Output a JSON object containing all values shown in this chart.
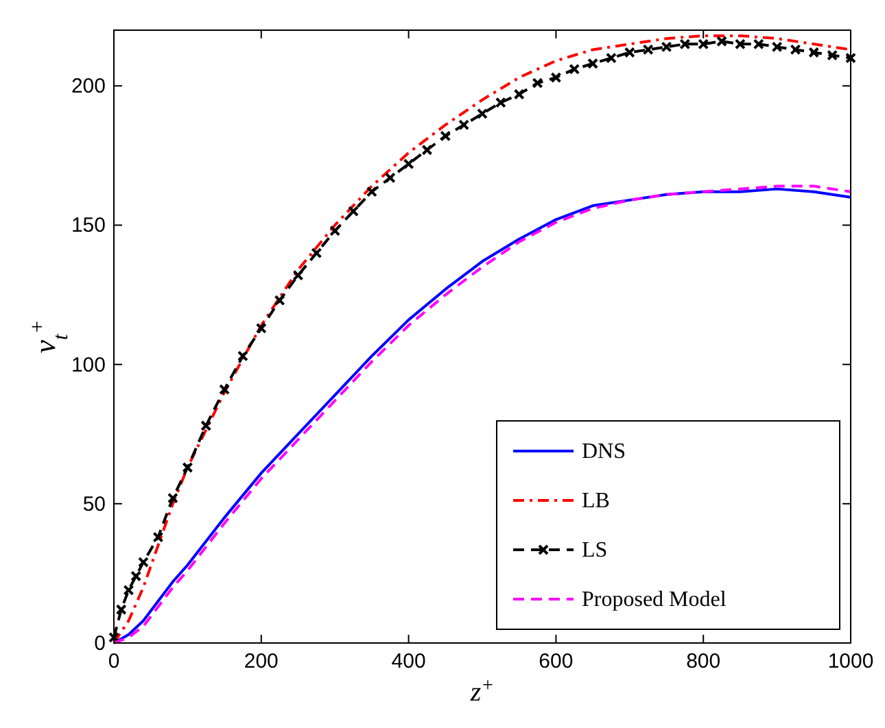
{
  "chart_data": {
    "type": "line",
    "xlabel": "z$^{+}$",
    "ylabel": "ν$_{t}$$^{+}$",
    "xlim": [
      0,
      1000
    ],
    "ylim": [
      0,
      220
    ],
    "xticks": [
      0,
      200,
      400,
      600,
      800,
      1000
    ],
    "yticks": [
      0,
      50,
      100,
      150,
      200
    ],
    "grid": false,
    "legend": "bottom right",
    "series": [
      {
        "name": "DNS",
        "color": "#0000ff",
        "line_style": "solid",
        "marker": "none",
        "x": [
          0,
          20,
          40,
          60,
          80,
          100,
          150,
          200,
          250,
          300,
          350,
          400,
          450,
          500,
          550,
          600,
          650,
          700,
          750,
          800,
          850,
          900,
          950,
          1000
        ],
        "values": [
          0,
          3,
          8,
          15,
          22,
          28,
          45,
          61,
          75,
          89,
          103,
          116,
          127,
          137,
          145,
          152,
          157,
          159,
          161,
          162,
          162,
          163,
          162,
          160
        ]
      },
      {
        "name": "LB",
        "color": "#ff0000",
        "line_style": "dashdot",
        "marker": "none",
        "x": [
          0,
          20,
          40,
          60,
          80,
          100,
          150,
          200,
          250,
          300,
          350,
          400,
          450,
          500,
          550,
          600,
          650,
          700,
          750,
          800,
          850,
          900,
          950,
          1000
        ],
        "values": [
          0,
          8,
          20,
          35,
          50,
          63,
          90,
          114,
          134,
          150,
          164,
          176,
          186,
          195,
          203,
          209,
          213,
          215,
          217,
          218,
          218,
          217,
          215,
          213
        ]
      },
      {
        "name": "LS",
        "color": "#000000",
        "line_style": "dashed",
        "marker": "cross",
        "x": [
          0,
          10,
          20,
          30,
          40,
          60,
          80,
          100,
          125,
          150,
          175,
          200,
          225,
          250,
          275,
          300,
          325,
          350,
          375,
          400,
          425,
          450,
          475,
          500,
          525,
          550,
          575,
          600,
          625,
          650,
          675,
          700,
          725,
          750,
          775,
          800,
          825,
          850,
          875,
          900,
          925,
          950,
          975,
          1000
        ],
        "values": [
          2,
          12,
          19,
          24,
          29,
          38,
          52,
          63,
          78,
          91,
          103,
          113,
          123,
          132,
          140,
          148,
          155,
          162,
          167,
          172,
          177,
          182,
          186,
          190,
          194,
          197,
          201,
          203,
          206,
          208,
          210,
          212,
          213,
          214,
          215,
          215,
          216,
          215,
          215,
          214,
          213,
          212,
          211,
          210
        ]
      },
      {
        "name": "Proposed Model",
        "color": "#ff00ff",
        "line_style": "dashed",
        "marker": "none",
        "x": [
          0,
          20,
          40,
          60,
          80,
          100,
          150,
          200,
          250,
          300,
          350,
          400,
          450,
          500,
          550,
          600,
          650,
          700,
          750,
          800,
          850,
          900,
          950,
          1000
        ],
        "values": [
          0,
          2,
          6,
          13,
          20,
          26,
          43,
          59,
          73,
          87,
          101,
          114,
          125,
          135,
          144,
          151,
          156,
          159,
          161,
          162,
          163,
          164,
          164,
          162
        ]
      }
    ]
  }
}
